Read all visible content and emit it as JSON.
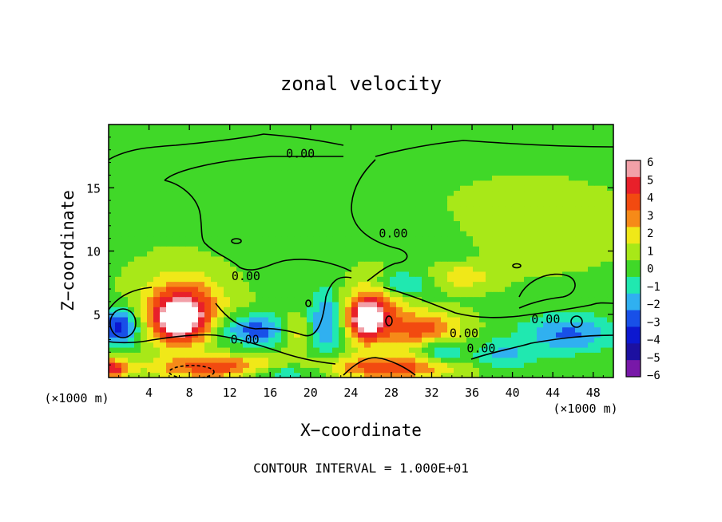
{
  "chart_data": {
    "type": "heatmap",
    "title": "zonal velocity",
    "xlabel": "X−coordinate",
    "ylabel": "Z−coordinate",
    "x_unit_left": "(×1000 m)",
    "x_unit_right": "(×1000 m)",
    "footer": "CONTOUR INTERVAL = 1.000E+01",
    "xlim": [
      0,
      50
    ],
    "ylim": [
      0,
      20
    ],
    "x_ticks": [
      {
        "value": 4,
        "label": "4"
      },
      {
        "value": 8,
        "label": "8"
      },
      {
        "value": 12,
        "label": "12"
      },
      {
        "value": 16,
        "label": "16"
      },
      {
        "value": 20,
        "label": "20"
      },
      {
        "value": 24,
        "label": "24"
      },
      {
        "value": 28,
        "label": "28"
      },
      {
        "value": 32,
        "label": "32"
      },
      {
        "value": 36,
        "label": "36"
      },
      {
        "value": 40,
        "label": "40"
      },
      {
        "value": 44,
        "label": "44"
      },
      {
        "value": 48,
        "label": "48"
      }
    ],
    "y_ticks": [
      {
        "value": 5,
        "label": "5"
      },
      {
        "value": 10,
        "label": "10"
      },
      {
        "value": 15,
        "label": "15"
      }
    ],
    "colorbar": {
      "range": [
        -6,
        6
      ],
      "levels": [
        {
          "value": 6,
          "label": "6",
          "color": "#f2a0a8"
        },
        {
          "value": 5,
          "label": "5",
          "color": "#e8202a"
        },
        {
          "value": 4,
          "label": "4",
          "color": "#f24a10"
        },
        {
          "value": 3,
          "label": "3",
          "color": "#f68a18"
        },
        {
          "value": 2,
          "label": "2",
          "color": "#f0e818"
        },
        {
          "value": 1,
          "label": "1",
          "color": "#a8e818"
        },
        {
          "value": 0,
          "label": "0",
          "color": "#40d828"
        },
        {
          "value": -1,
          "label": "−1",
          "color": "#20e8b0"
        },
        {
          "value": -2,
          "label": "−2",
          "color": "#30b0f0"
        },
        {
          "value": -3,
          "label": "−3",
          "color": "#1850e8"
        },
        {
          "value": -4,
          "label": "−4",
          "color": "#0c18d0"
        },
        {
          "value": -5,
          "label": "−5",
          "color": "#1c10a0"
        },
        {
          "value": -6,
          "label": "−6",
          "color": "#7818a8"
        }
      ]
    },
    "contour_labels": [
      {
        "text": "0.00",
        "x": 19.0,
        "y": 17.7
      },
      {
        "text": "0.00",
        "x": 28.2,
        "y": 11.4
      },
      {
        "text": "0.00",
        "x": 13.6,
        "y": 8.0
      },
      {
        "text": "0.00",
        "x": 13.5,
        "y": 3.0
      },
      {
        "text": "0.00",
        "x": 35.2,
        "y": 3.5
      },
      {
        "text": "0.00",
        "x": 36.9,
        "y": 2.3
      },
      {
        "text": "0.00",
        "x": 43.3,
        "y": 4.6
      }
    ],
    "field_features": [
      {
        "value": 0.1,
        "x": 25,
        "y": 13,
        "rx": 40,
        "ry": 10
      },
      {
        "value": -0.5,
        "x": 18,
        "y": 12,
        "rx": 7,
        "ry": 4
      },
      {
        "value": -0.4,
        "x": 34,
        "y": 10,
        "rx": 4,
        "ry": 3
      },
      {
        "value": 0.8,
        "x": 42,
        "y": 12,
        "rx": 8,
        "ry": 3
      },
      {
        "value": 5.5,
        "x": 7,
        "y": 4.6,
        "rx": 2.5,
        "ry": 1.8
      },
      {
        "value": 3.6,
        "x": 7.5,
        "y": 5.5,
        "rx": 4.2,
        "ry": 2.8
      },
      {
        "value": -4.5,
        "x": 1.0,
        "y": 4.0,
        "rx": 2.0,
        "ry": 1.4
      },
      {
        "value": -3.5,
        "x": 14.5,
        "y": 3.8,
        "rx": 4.0,
        "ry": 1.2
      },
      {
        "value": 2.5,
        "x": 18.5,
        "y": 3.7,
        "rx": 1.5,
        "ry": 1.3
      },
      {
        "value": -3.0,
        "x": 21.5,
        "y": 4.5,
        "rx": 1.6,
        "ry": 2.5
      },
      {
        "value": 5.5,
        "x": 25.5,
        "y": 4.6,
        "rx": 1.6,
        "ry": 1.5
      },
      {
        "value": 3.5,
        "x": 26.5,
        "y": 5.2,
        "rx": 3.0,
        "ry": 2.5
      },
      {
        "value": 3.5,
        "x": 31.5,
        "y": 3.8,
        "rx": 3.5,
        "ry": 1.4
      },
      {
        "value": -2.5,
        "x": 29.0,
        "y": 7.4,
        "rx": 2.5,
        "ry": 1.0
      },
      {
        "value": -3.0,
        "x": 45.5,
        "y": 3.5,
        "rx": 4.5,
        "ry": 1.5
      },
      {
        "value": -2.0,
        "x": 39.0,
        "y": 1.8,
        "rx": 3.0,
        "ry": 1.2
      },
      {
        "value": 2.0,
        "x": 35.0,
        "y": 8.0,
        "rx": 3.0,
        "ry": 1.0
      },
      {
        "value": 4.0,
        "x": 11.5,
        "y": 0.8,
        "rx": 7.0,
        "ry": 0.9
      },
      {
        "value": 4.0,
        "x": 28.0,
        "y": 0.8,
        "rx": 6.0,
        "ry": 0.9
      },
      {
        "value": -3.0,
        "x": 17.0,
        "y": 0.5,
        "rx": 4.0,
        "ry": 0.7
      },
      {
        "value": -2.5,
        "x": 33.0,
        "y": 2.2,
        "rx": 2.0,
        "ry": 1.0
      },
      {
        "value": 4.5,
        "x": 0.5,
        "y": 0.8,
        "rx": 1.5,
        "ry": 0.7
      }
    ]
  }
}
